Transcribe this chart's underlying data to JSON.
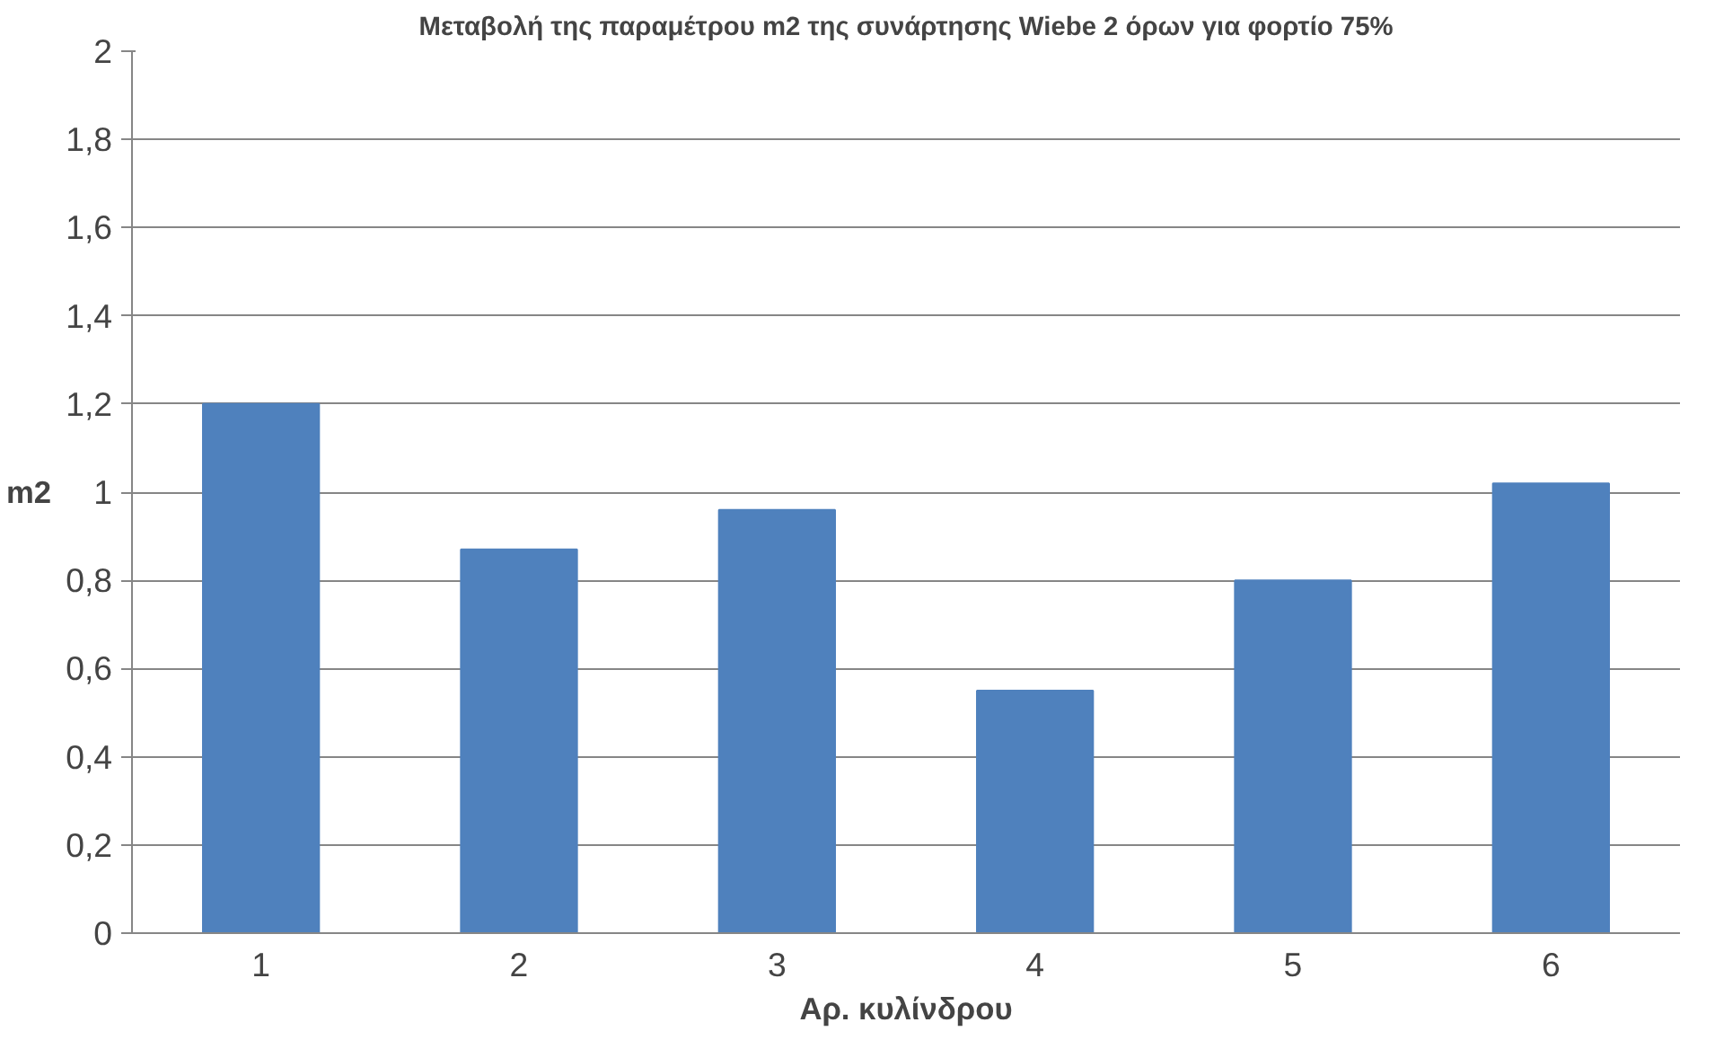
{
  "chart_data": {
    "type": "bar",
    "title": "Μεταβολή της παραμέτρου m2 της συνάρτησης Wiebe 2 όρων για φορτίο 75%",
    "xlabel": "Αρ. κυλίνδρου",
    "ylabel": "m2",
    "categories": [
      "1",
      "2",
      "3",
      "4",
      "5",
      "6"
    ],
    "values": [
      1.2,
      0.87,
      0.96,
      0.55,
      0.8,
      1.02
    ],
    "color": "#4f81bd",
    "ylim": [
      0,
      2
    ],
    "yticks": [
      0,
      {
        "value": 0.2,
        "label": "0,2"
      },
      {
        "value": 0.4,
        "label": "0,4"
      },
      {
        "value": 0.6,
        "label": "0,6"
      },
      {
        "value": 0.8,
        "label": "0,8"
      },
      1,
      {
        "value": 1.2,
        "label": "1,2"
      },
      {
        "value": 1.4,
        "label": "1,4"
      },
      {
        "value": 1.6,
        "label": "1,6"
      },
      {
        "value": 1.8,
        "label": "1,8"
      },
      2
    ],
    "grid": "y"
  }
}
